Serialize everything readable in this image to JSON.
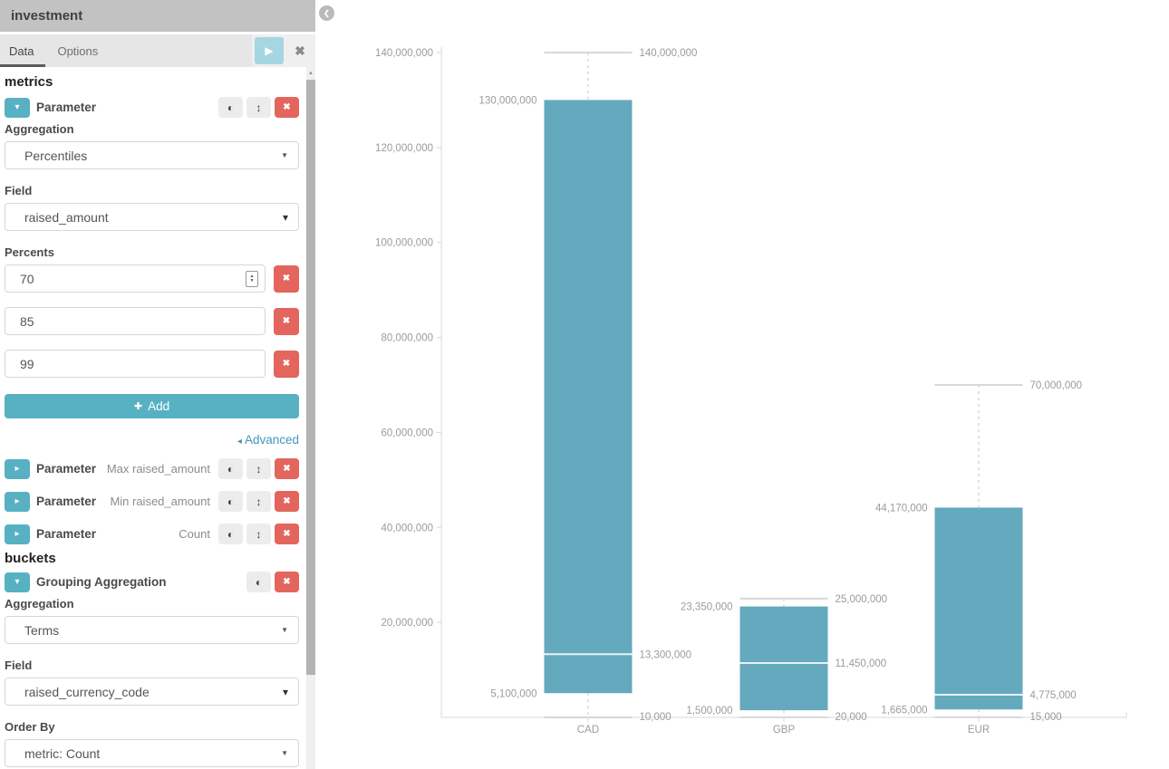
{
  "sidebar": {
    "title": "investment",
    "tabs": [
      {
        "label": "Data",
        "active": true
      },
      {
        "label": "Options",
        "active": false
      }
    ],
    "metrics_heading": "metrics",
    "buckets_heading": "buckets",
    "parameter_open": {
      "label": "Parameter",
      "aggregation_label": "Aggregation",
      "aggregation_value": "Percentiles",
      "field_label": "Field",
      "field_value": "raised_amount",
      "percents_label": "Percents",
      "percents": [
        "70",
        "85",
        "99"
      ],
      "add_button": "Add"
    },
    "advanced_link": "Advanced",
    "collapsed_parameters": [
      {
        "label": "Parameter",
        "desc": "Max raised_amount"
      },
      {
        "label": "Parameter",
        "desc": "Min raised_amount"
      },
      {
        "label": "Parameter",
        "desc": "Count"
      }
    ],
    "grouping": {
      "label": "Grouping Aggregation",
      "aggregation_label": "Aggregation",
      "aggregation_value": "Terms",
      "field_label": "Field",
      "field_value": "raised_currency_code",
      "order_by_label": "Order By",
      "order_by_value": "metric: Count"
    }
  },
  "chart_data": {
    "type": "boxplot",
    "categories": [
      "CAD",
      "GBP",
      "EUR"
    ],
    "series": [
      {
        "category": "CAD",
        "min": 10000,
        "p70": 5100000,
        "p85": 13300000,
        "p99": 130000000,
        "max": 140000000
      },
      {
        "category": "GBP",
        "min": 20000,
        "p70": 1500000,
        "p85": 11450000,
        "p99": 23350000,
        "max": 25000000
      },
      {
        "category": "EUR",
        "min": 15000,
        "p70": 1665000,
        "p85": 4775000,
        "p99": 44170000,
        "max": 70000000
      }
    ],
    "y_ticks": [
      20000000,
      40000000,
      60000000,
      80000000,
      100000000,
      120000000,
      140000000
    ],
    "ylim": [
      0,
      140000000
    ],
    "grid": false,
    "legend": false
  },
  "icons": {
    "play": "▶",
    "close": "✖",
    "chevron_down": "▾",
    "chevron_right": "▸",
    "toggle": "◐",
    "move_vertical": "↕",
    "remove": "✖",
    "select_arrow": "▼",
    "combo_arrow": "▾",
    "advanced_arrow": "◂",
    "back": "❮",
    "plus": "✚",
    "scroll_up": "▲",
    "stepper_up": "▲",
    "stepper_down": "▼"
  },
  "colors": {
    "accent_teal": "#57b1c3",
    "apply_button_teal": "#a5d6e2",
    "danger_red": "#e3655d",
    "bar_fill": "#64a9bd",
    "axis_line": "#d8d8d8",
    "chart_label": "#9b9b9b",
    "header_bg": "#c2c2c2",
    "tabbar_bg": "#e6e6e6"
  }
}
